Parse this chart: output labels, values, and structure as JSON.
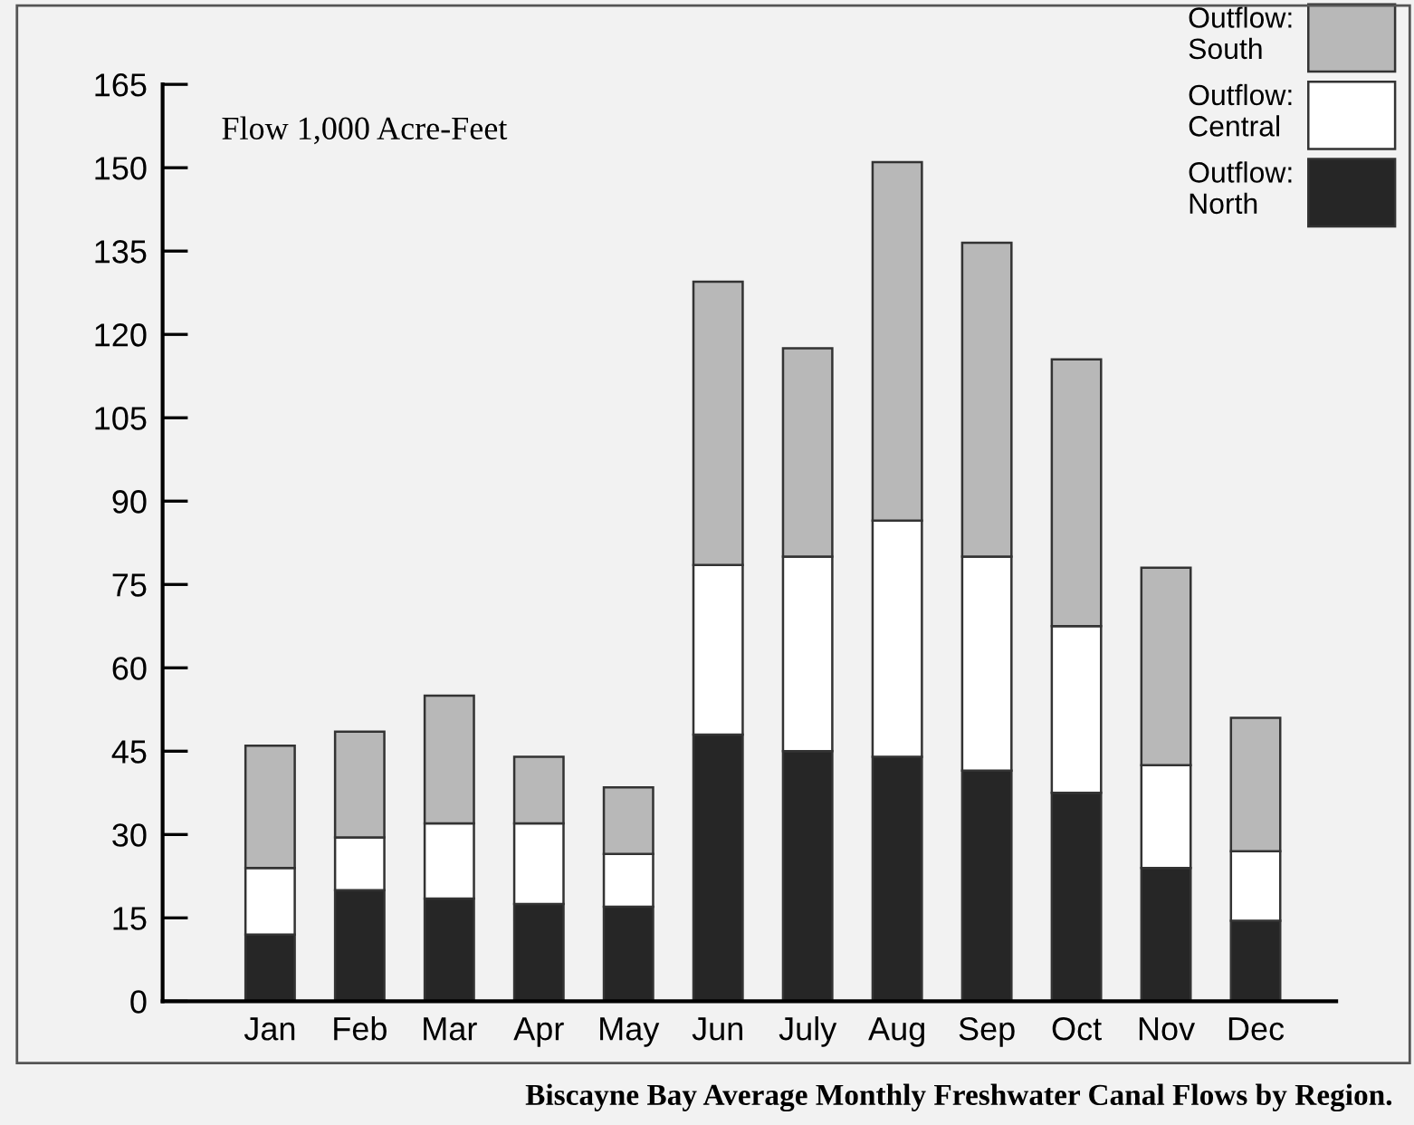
{
  "chart_data": {
    "type": "bar",
    "stacked": true,
    "title": "Biscayne Bay Average Monthly Freshwater Canal Flows by Region.",
    "ylabel": "Flow 1,000 Acre-Feet",
    "categories": [
      "Jan",
      "Feb",
      "Mar",
      "Apr",
      "May",
      "Jun",
      "July",
      "Aug",
      "Sep",
      "Oct",
      "Nov",
      "Dec"
    ],
    "series": [
      {
        "name": "Outflow:\nNorth",
        "color": "#262626",
        "values": [
          12,
          20,
          18.5,
          17.5,
          17,
          48,
          45,
          44,
          41.5,
          37.5,
          24,
          14.5
        ]
      },
      {
        "name": "Outflow:\nCentral",
        "color": "#ffffff",
        "values": [
          12,
          9.5,
          13.5,
          14.5,
          9.5,
          30.5,
          35,
          42.5,
          38.5,
          30,
          18.5,
          12.5
        ]
      },
      {
        "name": "Outflow:\nSouth",
        "color": "#b8b8b8",
        "values": [
          22,
          19,
          23,
          12,
          12,
          51,
          37.5,
          64.5,
          56.5,
          48,
          35.5,
          24
        ]
      }
    ],
    "ylim": [
      0,
      165
    ],
    "yticks": [
      0,
      15,
      30,
      45,
      60,
      75,
      90,
      105,
      120,
      135,
      150,
      165
    ],
    "grid": false,
    "legend": "top right"
  }
}
